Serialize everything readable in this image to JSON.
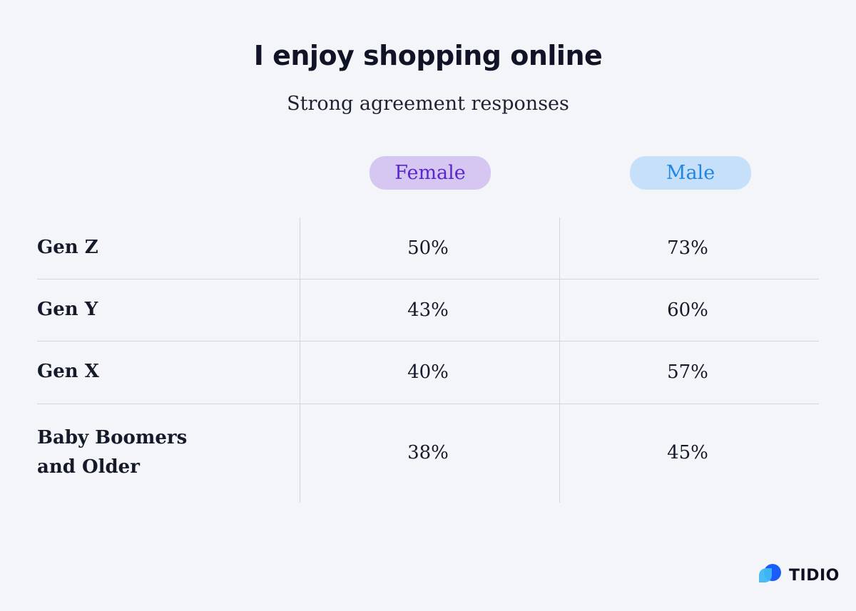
{
  "chart_data": {
    "type": "table",
    "title": "I enjoy shopping online",
    "subtitle": "Strong agreement responses",
    "columns": [
      "Female",
      "Male"
    ],
    "rows": [
      {
        "label": "Gen Z",
        "values": [
          "50%",
          "73%"
        ]
      },
      {
        "label": "Gen Y",
        "values": [
          "43%",
          "60%"
        ]
      },
      {
        "label": "Gen X",
        "values": [
          "40%",
          "57%"
        ]
      },
      {
        "label": "Baby Boomers and Older",
        "values": [
          "38%",
          "45%"
        ]
      }
    ],
    "colors": {
      "female_pill": "#d5c6f2",
      "female_text": "#5a26cf",
      "male_pill": "#c6e0f9",
      "male_text": "#1f86e8"
    }
  },
  "brand": {
    "logo_text": "TIDIO",
    "icon": "tidio-chat-bubble-icon"
  }
}
